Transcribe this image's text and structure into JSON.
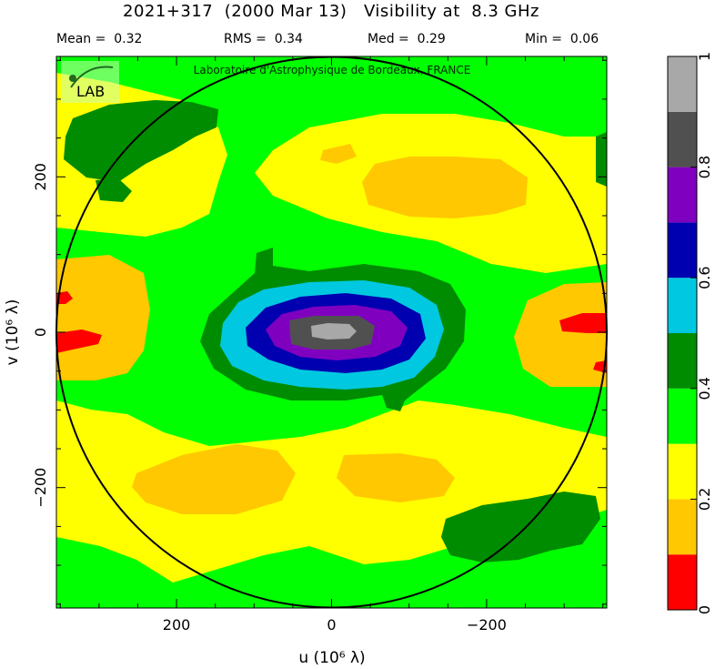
{
  "chart_data": {
    "type": "heatmap",
    "title": "2021+317  (2000 Mar 13)   Visibility at  8.3 GHz",
    "stats": {
      "mean": "Mean =  0.32",
      "rms": "RMS =  0.34",
      "med": "Med =  0.29",
      "min": "Min =  0.06"
    },
    "watermark": "Laboratoire d'Astrophysique de Bordeaux, FRANCE",
    "logo_text": "LAB",
    "xlabel": "u  (10⁶ λ)",
    "ylabel": "v  (10⁶ λ)",
    "xlim": [
      355,
      -355
    ],
    "ylim": [
      -355,
      355
    ],
    "xticks": [
      200,
      0,
      -200
    ],
    "xtick_labels": [
      "200",
      "0",
      "−200"
    ],
    "yticks": [
      200,
      0,
      -200
    ],
    "ytick_labels": [
      "200",
      "0",
      "−200"
    ],
    "circle_radius": 355,
    "colorbar": {
      "range": [
        0,
        1
      ],
      "ticks": [
        0,
        0.2,
        0.4,
        0.6,
        0.8,
        1
      ],
      "tick_labels": [
        "0",
        "0.2",
        "0.4",
        "0.6",
        "0.8",
        "1"
      ],
      "colors": [
        "#ff0000",
        "#ffc800",
        "#ffff00",
        "#00ff00",
        "#008c00",
        "#00c8e0",
        "#0000b0",
        "#8000c0",
        "#505050",
        "#a8a8a8"
      ]
    },
    "colors": {
      "background": "#ffff00",
      "plot_border": "#000000"
    }
  }
}
